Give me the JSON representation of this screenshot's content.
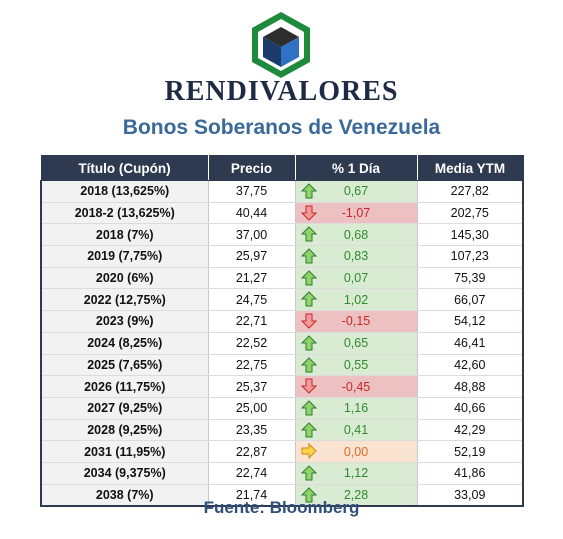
{
  "brand": "RENDIVALORES",
  "subtitle": "Bonos Soberanos de Venezuela",
  "columns": [
    "Título (Cupón)",
    "Precio",
    "% 1 Día",
    "Media YTM"
  ],
  "rows": [
    {
      "titulo": "2018 (13,625%)",
      "precio": "37,75",
      "dia": "0,67",
      "ytm": "227,82",
      "dir": "up"
    },
    {
      "titulo": "2018-2 (13,625%)",
      "precio": "40,44",
      "dia": "-1,07",
      "ytm": "202,75",
      "dir": "down"
    },
    {
      "titulo": "2018 (7%)",
      "precio": "37,00",
      "dia": "0,68",
      "ytm": "145,30",
      "dir": "up"
    },
    {
      "titulo": "2019 (7,75%)",
      "precio": "25,97",
      "dia": "0,83",
      "ytm": "107,23",
      "dir": "up"
    },
    {
      "titulo": "2020 (6%)",
      "precio": "21,27",
      "dia": "0,07",
      "ytm": "75,39",
      "dir": "up"
    },
    {
      "titulo": "2022 (12,75%)",
      "precio": "24,75",
      "dia": "1,02",
      "ytm": "66,07",
      "dir": "up"
    },
    {
      "titulo": "2023 (9%)",
      "precio": "22,71",
      "dia": "-0,15",
      "ytm": "54,12",
      "dir": "down"
    },
    {
      "titulo": "2024 (8,25%)",
      "precio": "22,52",
      "dia": "0,65",
      "ytm": "46,41",
      "dir": "up"
    },
    {
      "titulo": "2025 (7,65%)",
      "precio": "22,75",
      "dia": "0,55",
      "ytm": "42,60",
      "dir": "up"
    },
    {
      "titulo": "2026 (11,75%)",
      "precio": "25,37",
      "dia": "-0,45",
      "ytm": "48,88",
      "dir": "down"
    },
    {
      "titulo": "2027 (9,25%)",
      "precio": "25,00",
      "dia": "1,16",
      "ytm": "40,66",
      "dir": "up"
    },
    {
      "titulo": "2028 (9,25%)",
      "precio": "23,35",
      "dia": "0,41",
      "ytm": "42,29",
      "dir": "up"
    },
    {
      "titulo": "2031 (11,95%)",
      "precio": "22,87",
      "dia": "0,00",
      "ytm": "52,19",
      "dir": "flat"
    },
    {
      "titulo": "2034 (9,375%)",
      "precio": "22,74",
      "dia": "1,12",
      "ytm": "41,86",
      "dir": "up"
    },
    {
      "titulo": "2038 (7%)",
      "precio": "21,74",
      "dia": "2,28",
      "ytm": "33,09",
      "dir": "up"
    }
  ],
  "icons": {
    "up": "arrow-up-icon",
    "down": "arrow-down-icon",
    "flat": "arrow-right-icon"
  },
  "colors": {
    "up": "#2e8b2e",
    "down": "#c62828",
    "flat": "#e06a20",
    "header": "#2e3a4f",
    "subtitle": "#3a6a9a"
  },
  "source": "Fuente: Bloomberg"
}
